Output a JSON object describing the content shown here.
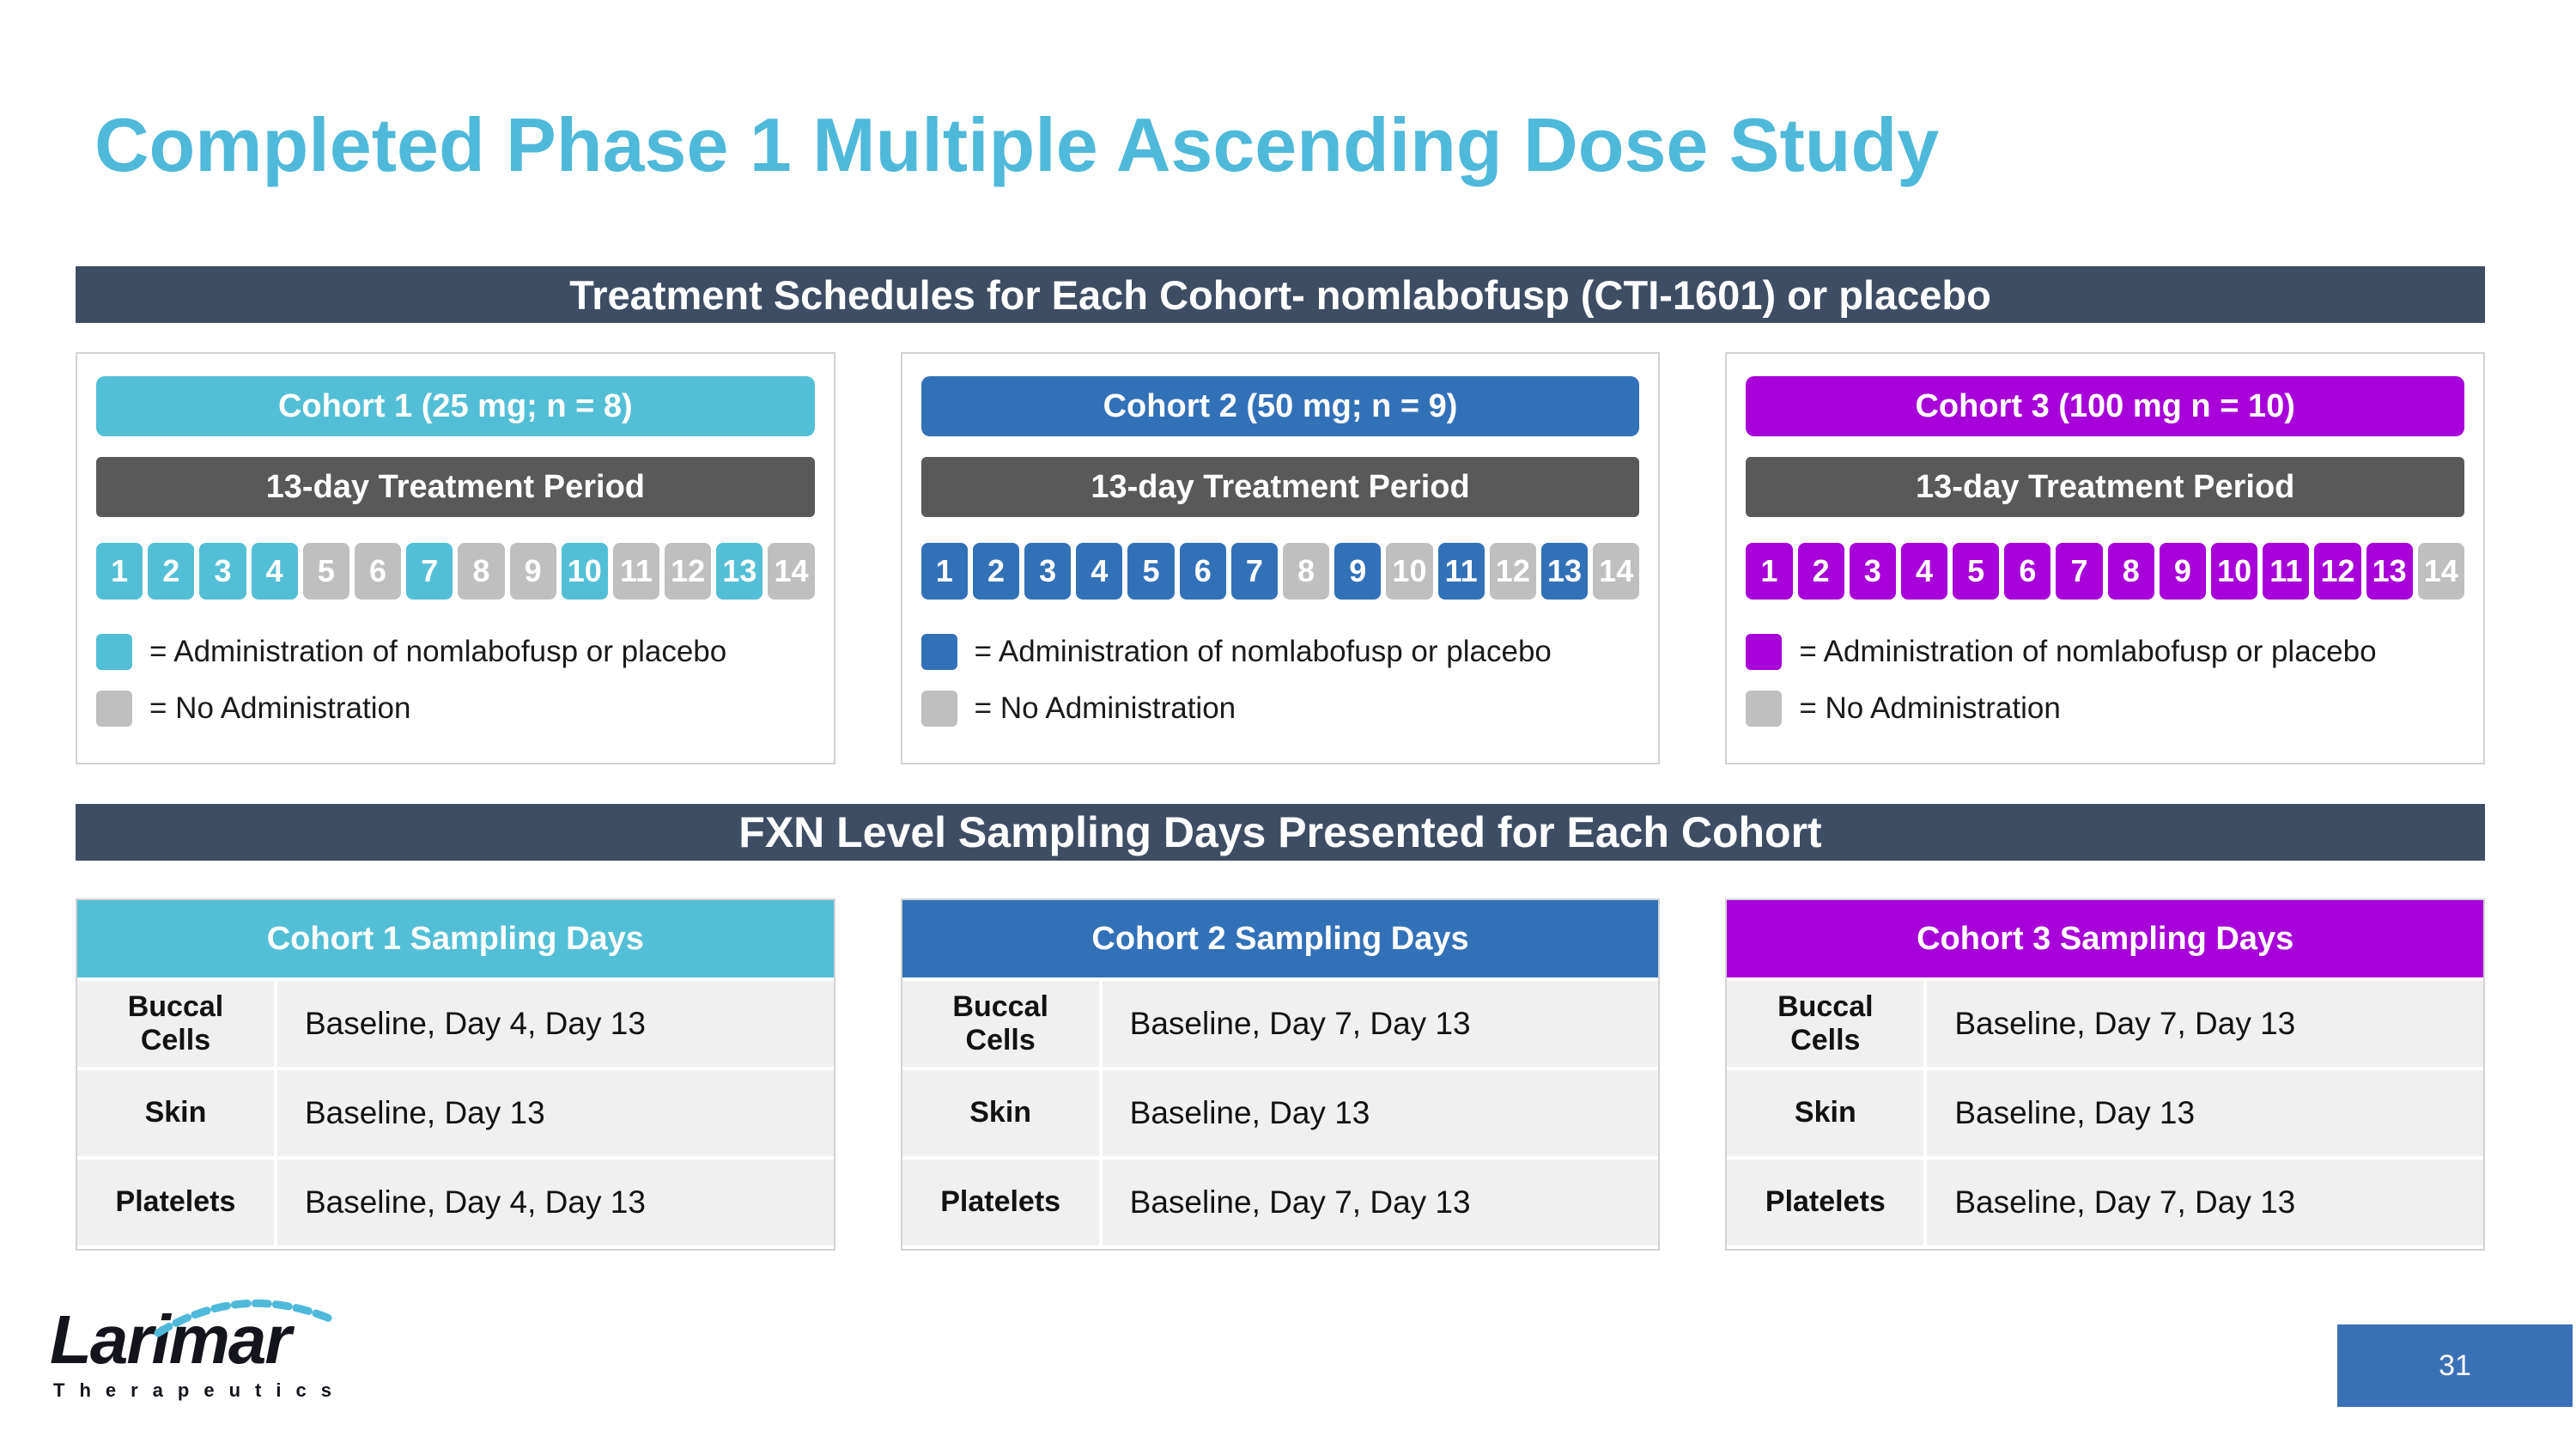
{
  "slide": {
    "title": "Completed Phase 1 Multiple Ascending Dose Study",
    "page_number": "31"
  },
  "banners": {
    "treatment": "Treatment Schedules for Each Cohort- nomlabofusp (CTI-1601) or placebo",
    "sampling": "FXN Level Sampling Days Presented for Each Cohort"
  },
  "colors": {
    "title": "#4FB9DA",
    "banner": "#3E4D63",
    "cohort1": "#53BFD6",
    "cohort2": "#3271B8",
    "cohort3": "#A800D8",
    "treatment_bar": "#595959",
    "inactive_day": "#BFBFBF",
    "page_box": "#3A70B6"
  },
  "cohorts": [
    {
      "header": "Cohort 1 (25 mg; n = 8)",
      "treatment_period": "13-day Treatment Period",
      "days": [
        1,
        2,
        3,
        4,
        5,
        6,
        7,
        8,
        9,
        10,
        11,
        12,
        13,
        14
      ],
      "active_days": [
        1,
        2,
        3,
        4,
        7,
        10,
        13
      ],
      "legend_admin": "= Administration of nomlabofusp  or placebo",
      "legend_no_admin": "= No Administration",
      "sampling": {
        "header": "Cohort 1 Sampling Days",
        "rows": [
          {
            "label": "Buccal Cells",
            "value": "Baseline, Day 4, Day 13"
          },
          {
            "label": "Skin",
            "value": "Baseline, Day 13"
          },
          {
            "label": "Platelets",
            "value": "Baseline, Day 4, Day 13"
          }
        ]
      }
    },
    {
      "header": "Cohort 2 (50 mg; n = 9)",
      "treatment_period": "13-day Treatment Period",
      "days": [
        1,
        2,
        3,
        4,
        5,
        6,
        7,
        8,
        9,
        10,
        11,
        12,
        13,
        14
      ],
      "active_days": [
        1,
        2,
        3,
        4,
        5,
        6,
        7,
        9,
        11,
        13
      ],
      "legend_admin": "= Administration of nomlabofusp or placebo",
      "legend_no_admin": "= No Administration",
      "sampling": {
        "header": "Cohort 2 Sampling Days",
        "rows": [
          {
            "label": "Buccal Cells",
            "value": "Baseline, Day 7, Day 13"
          },
          {
            "label": "Skin",
            "value": "Baseline, Day 13"
          },
          {
            "label": "Platelets",
            "value": "Baseline, Day 7, Day 13"
          }
        ]
      }
    },
    {
      "header": "Cohort 3 (100 mg n = 10)",
      "treatment_period": "13-day Treatment Period",
      "days": [
        1,
        2,
        3,
        4,
        5,
        6,
        7,
        8,
        9,
        10,
        11,
        12,
        13,
        14
      ],
      "active_days": [
        1,
        2,
        3,
        4,
        5,
        6,
        7,
        8,
        9,
        10,
        11,
        12,
        13
      ],
      "legend_admin": "= Administration of nomlabofusp or placebo",
      "legend_no_admin": "= No Administration",
      "sampling": {
        "header": "Cohort 3 Sampling Days",
        "rows": [
          {
            "label": "Buccal Cells",
            "value": "Baseline, Day 7, Day 13"
          },
          {
            "label": "Skin",
            "value": "Baseline, Day 13"
          },
          {
            "label": "Platelets",
            "value": "Baseline, Day 7, Day 13"
          }
        ]
      }
    }
  ],
  "logo": {
    "wordmark": "Larimar",
    "subtext": "Therapeutics"
  }
}
